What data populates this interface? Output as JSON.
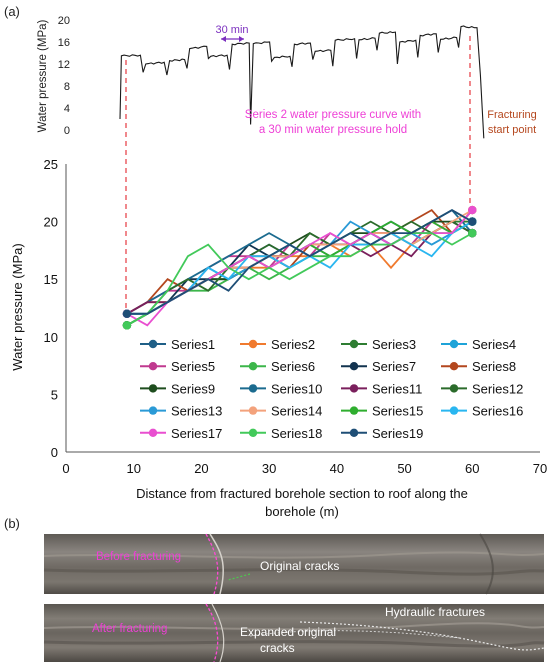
{
  "panel_labels": {
    "a": "(a)",
    "b": "(b)"
  },
  "colors": {
    "Series1": "#1f5f87",
    "Series2": "#f07a2e",
    "Series3": "#2e7d32",
    "Series4": "#1ea3d8",
    "Series5": "#c0398f",
    "Series6": "#3cb64a",
    "Series7": "#12334f",
    "Series8": "#b3471e",
    "Series9": "#1e4d1e",
    "Series10": "#1b6b8f",
    "Series11": "#7a1f5c",
    "Series12": "#2b6b2b",
    "Series13": "#2a9ad6",
    "Series14": "#f3a27c",
    "Series15": "#2fae2f",
    "Series16": "#29b6f0",
    "Series17": "#e94fd0",
    "Series18": "#42c95a",
    "Series19": "#1e4e76",
    "guide_line": "#e8474f",
    "annotation_text": "#ee3fd6",
    "fracture_label": "#b5471e",
    "hold_arrow": "#7b2fbf"
  },
  "inset": {
    "ylabel": "Water pressure (MPa)",
    "yticks": [
      0,
      4,
      8,
      12,
      16,
      20
    ],
    "hold_label": "30 min",
    "curve_caption_line1": "Series 2 water pressure curve with",
    "curve_caption_line2": "a 30 min water pressure hold",
    "fracture_label_line1": "Fracturing",
    "fracture_label_line2": "start point",
    "curve_profile": [
      [
        0,
        2
      ],
      [
        0.4,
        13.5
      ],
      [
        6,
        13.6
      ],
      [
        6.8,
        10.5
      ],
      [
        7.6,
        12
      ],
      [
        13,
        12.3
      ],
      [
        13.8,
        10
      ],
      [
        14.6,
        12.6
      ],
      [
        19,
        12.8
      ],
      [
        19.7,
        11.2
      ],
      [
        20.5,
        14.8
      ],
      [
        25.5,
        15.2
      ],
      [
        26,
        13
      ],
      [
        26.7,
        13.4
      ],
      [
        31.5,
        13.6
      ],
      [
        32.2,
        11
      ],
      [
        33,
        15.6
      ],
      [
        38,
        15.8
      ],
      [
        38.4,
        1
      ],
      [
        39.2,
        15.7
      ],
      [
        44,
        16
      ],
      [
        44.6,
        12.5
      ],
      [
        45.4,
        13.2
      ],
      [
        50,
        13.4
      ],
      [
        50.6,
        11.5
      ],
      [
        51.3,
        15.6
      ],
      [
        56,
        15.8
      ],
      [
        56.7,
        12.8
      ],
      [
        57.4,
        14.3
      ],
      [
        62,
        14.5
      ],
      [
        62.6,
        11.6
      ],
      [
        63.3,
        16.3
      ],
      [
        69,
        16.6
      ],
      [
        69.6,
        13
      ],
      [
        70.3,
        16.4
      ],
      [
        75,
        16.7
      ],
      [
        75.6,
        14.5
      ],
      [
        76.3,
        17.6
      ],
      [
        81,
        17.8
      ],
      [
        81.6,
        12
      ],
      [
        82.3,
        16
      ],
      [
        87,
        16.3
      ],
      [
        87.6,
        13.2
      ],
      [
        88.3,
        17.2
      ],
      [
        93,
        17.5
      ],
      [
        93.6,
        14.1
      ],
      [
        94.3,
        16.5
      ],
      [
        99,
        16.8
      ],
      [
        99.6,
        15
      ],
      [
        100.3,
        18.8
      ],
      [
        105,
        18.6
      ],
      [
        106,
        10
      ],
      [
        107,
        -1.5
      ]
    ]
  },
  "chart_data": {
    "type": "line",
    "xlabel": "Distance from fractured borehole section to roof along the borehole (m)",
    "ylabel": "Water pressure (MPa)",
    "xlim": [
      0,
      70
    ],
    "ylim": [
      0,
      25
    ],
    "xticks": [
      0,
      10,
      20,
      30,
      40,
      50,
      60,
      70
    ],
    "yticks": [
      0,
      5,
      10,
      15,
      20,
      25
    ],
    "grid": false,
    "legend": "inside-bottom",
    "series": [
      {
        "name": "Series1",
        "x": [
          9,
          12,
          15,
          18,
          21,
          24,
          27,
          30,
          33,
          36,
          39,
          42,
          45,
          48,
          51,
          54,
          57,
          60
        ],
        "y": [
          12,
          12,
          13,
          14,
          15,
          16,
          17,
          18,
          17,
          18,
          17,
          18,
          18,
          19,
          18,
          19,
          20,
          19
        ]
      },
      {
        "name": "Series2",
        "x": [
          9,
          12,
          15,
          18,
          21,
          24,
          27,
          30,
          33,
          36,
          39,
          42,
          45,
          48,
          51,
          54,
          57,
          60
        ],
        "y": [
          12,
          13,
          13,
          14,
          15,
          15,
          16,
          16,
          17,
          17,
          18,
          17,
          18,
          16,
          18,
          19,
          20,
          20
        ]
      },
      {
        "name": "Series3",
        "x": [
          9,
          12,
          15,
          18,
          21,
          24,
          27,
          30,
          33,
          36,
          39,
          42,
          45,
          48,
          51,
          54,
          57,
          60
        ],
        "y": [
          11,
          12,
          13,
          14,
          15,
          16,
          16,
          17,
          17,
          18,
          18,
          18,
          19,
          18,
          19,
          19,
          20,
          20
        ]
      },
      {
        "name": "Series4",
        "x": [
          9,
          12,
          15,
          18,
          21,
          24,
          27,
          30,
          33,
          36,
          39,
          42,
          45,
          48,
          51,
          54,
          57,
          60
        ],
        "y": [
          11,
          12,
          13,
          14,
          15,
          15,
          16,
          17,
          16,
          17,
          18,
          19,
          18,
          18,
          19,
          18,
          19,
          20
        ]
      },
      {
        "name": "Series5",
        "x": [
          9,
          12,
          15,
          18,
          21,
          24,
          27,
          30,
          33,
          36,
          39,
          42,
          45,
          48,
          51,
          54,
          57,
          60
        ],
        "y": [
          12,
          13,
          14,
          14,
          16,
          17,
          17,
          16,
          18,
          17,
          19,
          18,
          19,
          19,
          18,
          20,
          19,
          21
        ]
      },
      {
        "name": "Series6",
        "x": [
          9,
          12,
          15,
          18,
          21,
          24,
          27,
          30,
          33,
          36,
          39,
          42,
          45,
          48,
          51,
          54,
          57,
          60
        ],
        "y": [
          11,
          12,
          13,
          14,
          14,
          15,
          16,
          15,
          16,
          17,
          17,
          18,
          18,
          19,
          18,
          19,
          19,
          20
        ]
      },
      {
        "name": "Series7",
        "x": [
          9,
          12,
          15,
          18,
          21,
          24,
          27,
          30,
          33,
          36,
          39,
          42,
          45,
          48,
          51,
          54,
          57,
          60
        ],
        "y": [
          12,
          12,
          13,
          15,
          15,
          16,
          18,
          17,
          17,
          18,
          18,
          18,
          19,
          18,
          19,
          20,
          21,
          20
        ]
      },
      {
        "name": "Series8",
        "x": [
          9,
          12,
          15,
          18,
          21,
          24,
          27,
          30,
          33,
          36,
          39,
          42,
          45,
          48,
          51,
          54,
          57,
          60
        ],
        "y": [
          12,
          13,
          15,
          14,
          15,
          16,
          17,
          17,
          16,
          18,
          18,
          18,
          19,
          19,
          20,
          21,
          19,
          21
        ]
      },
      {
        "name": "Series9",
        "x": [
          9,
          12,
          15,
          18,
          21,
          24,
          27,
          30,
          33,
          36,
          39,
          42,
          45,
          48,
          51,
          54,
          57,
          60
        ],
        "y": [
          11,
          12,
          13,
          14,
          15,
          15,
          16,
          17,
          18,
          19,
          18,
          19,
          19,
          20,
          19,
          20,
          20,
          19
        ]
      },
      {
        "name": "Series10",
        "x": [
          9,
          12,
          15,
          18,
          21,
          24,
          27,
          30,
          33,
          36,
          39,
          42,
          45,
          48,
          51,
          54,
          57,
          60
        ],
        "y": [
          12,
          13,
          14,
          15,
          16,
          17,
          18,
          19,
          18,
          17,
          18,
          18,
          19,
          20,
          19,
          20,
          21,
          19
        ]
      },
      {
        "name": "Series11",
        "x": [
          9,
          12,
          15,
          18,
          21,
          24,
          27,
          30,
          33,
          36,
          39,
          42,
          45,
          48,
          51,
          54,
          57,
          60
        ],
        "y": [
          12,
          13,
          13,
          14,
          15,
          16,
          16,
          17,
          17,
          18,
          18,
          18,
          17,
          18,
          17,
          19,
          20,
          19
        ]
      },
      {
        "name": "Series12",
        "x": [
          9,
          12,
          15,
          18,
          21,
          24,
          27,
          30,
          33,
          36,
          39,
          42,
          45,
          48,
          51,
          54,
          57,
          60
        ],
        "y": [
          11,
          12,
          14,
          15,
          14,
          16,
          17,
          18,
          17,
          19,
          18,
          19,
          20,
          19,
          20,
          19,
          20,
          19
        ]
      },
      {
        "name": "Series13",
        "x": [
          9,
          12,
          15,
          18,
          21,
          24,
          27,
          30,
          33,
          36,
          39,
          42,
          45,
          48,
          51,
          54,
          57,
          60
        ],
        "y": [
          12,
          12,
          13,
          14,
          16,
          15,
          16,
          17,
          18,
          17,
          18,
          20,
          19,
          18,
          19,
          18,
          19,
          20
        ]
      },
      {
        "name": "Series14",
        "x": [
          9,
          12,
          15,
          18,
          21,
          24,
          27,
          30,
          33,
          36,
          39,
          42,
          45,
          48,
          51,
          54,
          57,
          60
        ],
        "y": [
          12,
          12,
          13,
          14,
          15,
          16,
          16,
          17,
          17,
          18,
          18,
          18,
          19,
          19,
          18,
          19,
          20,
          21
        ]
      },
      {
        "name": "Series15",
        "x": [
          9,
          12,
          15,
          18,
          21,
          24,
          27,
          30,
          33,
          36,
          39,
          42,
          45,
          48,
          51,
          54,
          57,
          60
        ],
        "y": [
          11,
          12,
          13,
          14,
          15,
          16,
          17,
          16,
          17,
          18,
          17,
          18,
          19,
          20,
          19,
          20,
          19,
          20
        ]
      },
      {
        "name": "Series16",
        "x": [
          9,
          12,
          15,
          18,
          21,
          24,
          27,
          30,
          33,
          36,
          39,
          42,
          45,
          48,
          51,
          54,
          57,
          60
        ],
        "y": [
          12,
          12,
          13,
          14,
          16,
          15,
          17,
          17,
          16,
          17,
          16,
          18,
          18,
          19,
          18,
          17,
          19,
          20
        ]
      },
      {
        "name": "Series17",
        "x": [
          9,
          12,
          15,
          18,
          21,
          24,
          27,
          30,
          33,
          36,
          39,
          42,
          45,
          48,
          51,
          54,
          57,
          60
        ],
        "y": [
          12,
          11,
          13,
          14,
          15,
          16,
          17,
          16,
          17,
          18,
          19,
          18,
          19,
          18,
          19,
          19,
          19,
          21
        ]
      },
      {
        "name": "Series18",
        "x": [
          9,
          12,
          15,
          18,
          21,
          24,
          27,
          30,
          33,
          36,
          39,
          42,
          45,
          48,
          51,
          54,
          57,
          60
        ],
        "y": [
          11,
          12,
          14,
          17,
          18,
          16,
          15,
          16,
          15,
          16,
          17,
          17,
          18,
          18,
          19,
          19,
          18,
          19
        ]
      },
      {
        "name": "Series19",
        "x": [
          9,
          12,
          15,
          18,
          21,
          24,
          27,
          30,
          33,
          36,
          39,
          42,
          45,
          48,
          51,
          54,
          57,
          60
        ],
        "y": [
          12,
          12,
          13,
          14,
          15,
          14,
          16,
          17,
          18,
          17,
          18,
          19,
          18,
          19,
          19,
          20,
          21,
          20
        ]
      }
    ]
  },
  "photos": {
    "top_left_label": "Before fracturing",
    "top_right_label": "Original cracks",
    "bottom_left_label": "After fracturing",
    "bottom_mid_label_line1": "Expanded original",
    "bottom_mid_label_line2": "cracks",
    "bottom_right_label": "Hydraulic fractures"
  }
}
